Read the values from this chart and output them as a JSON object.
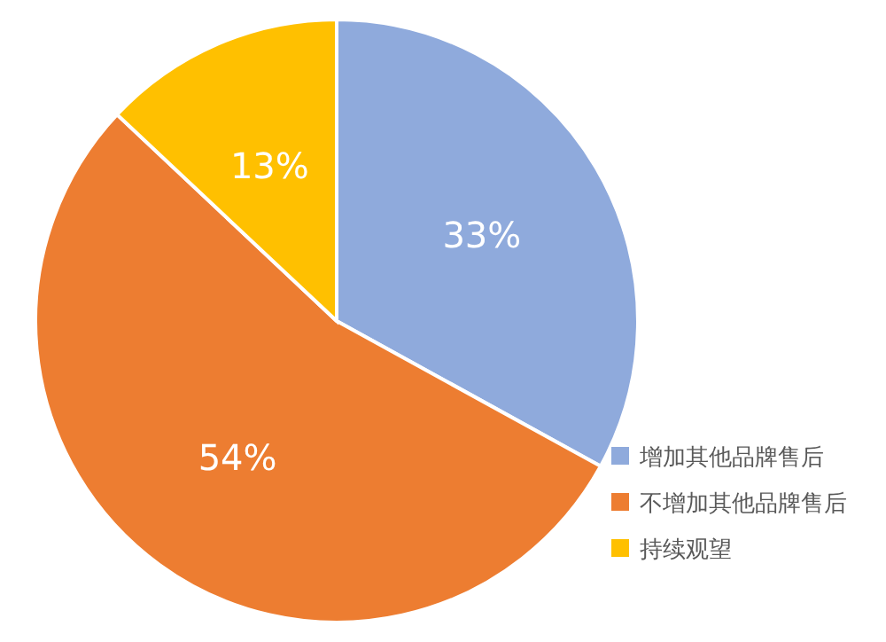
{
  "chart_data": {
    "type": "pie",
    "categories": [
      "增加其他品牌售后",
      "不增加其他品牌售后",
      "持续观望"
    ],
    "values": [
      33,
      54,
      13
    ],
    "colors": [
      "#8faadc",
      "#ed7d31",
      "#ffc000"
    ],
    "value_labels": [
      "33%",
      "54%",
      "13%"
    ],
    "legend": "bottom right"
  }
}
